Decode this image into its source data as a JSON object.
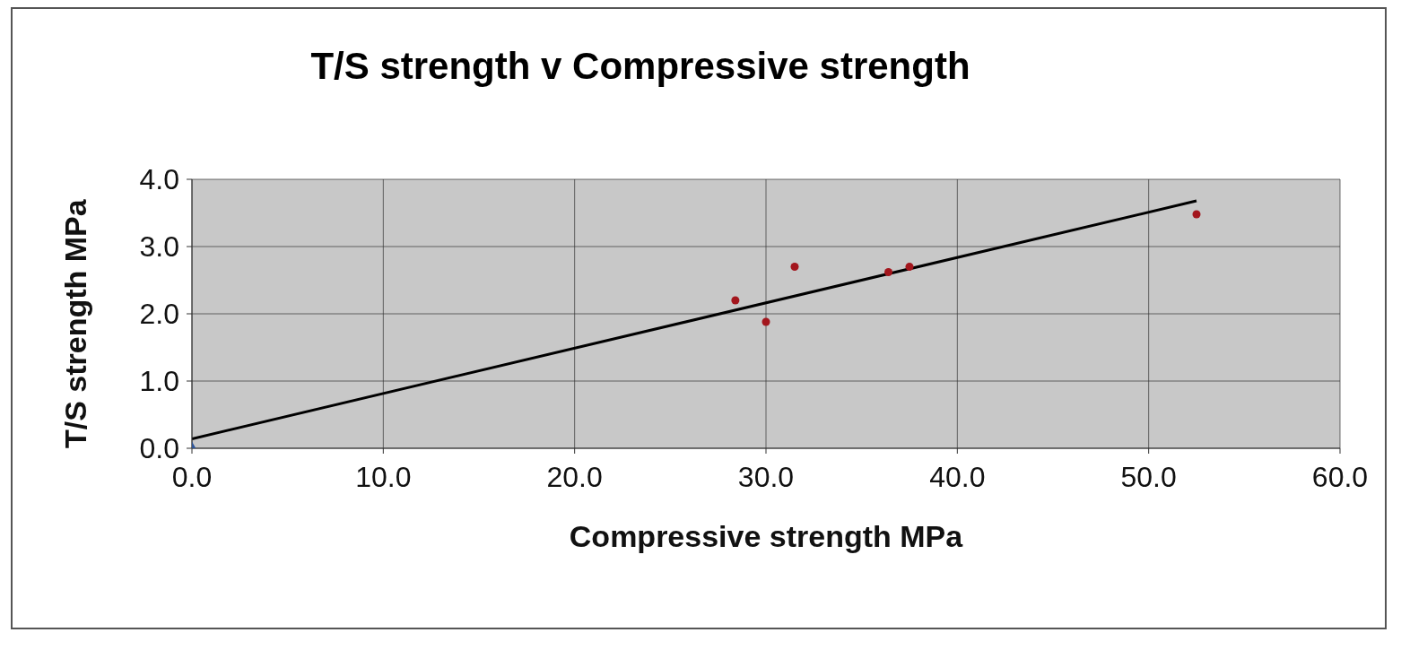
{
  "chart_data": {
    "type": "scatter",
    "title": "T/S strength v Compressive strength",
    "xlabel": "Compressive strength MPa",
    "ylabel": "T/S strength MPa",
    "series": [
      {
        "color": "#a3161d",
        "marker": "circle",
        "x": [
          28.4,
          30.0,
          31.5,
          36.4,
          37.5,
          52.5
        ],
        "values": [
          2.2,
          1.88,
          2.7,
          2.62,
          2.7,
          3.48
        ]
      },
      {
        "color": "#2f5597",
        "marker": "diamond",
        "x": [
          0
        ],
        "values": [
          0
        ]
      },
      {
        "type": "line",
        "color": "#000000",
        "marker": "none",
        "x": [
          0,
          52.5
        ],
        "values": [
          0.14,
          3.68
        ]
      }
    ],
    "xlim": [
      0,
      60
    ],
    "xticks": [
      {
        "value": 0,
        "label": "0.0"
      },
      {
        "value": 10,
        "label": "10.0"
      },
      {
        "value": 20,
        "label": "20.0"
      },
      {
        "value": 30,
        "label": "30.0"
      },
      {
        "value": 40,
        "label": "40.0"
      },
      {
        "value": 50,
        "label": "50.0"
      },
      {
        "value": 60,
        "label": "60.0"
      }
    ],
    "ylim": [
      0,
      4
    ],
    "yticks": [
      {
        "value": 0,
        "label": "0.0"
      },
      {
        "value": 1,
        "label": "1.0"
      },
      {
        "value": 2,
        "label": "2.0"
      },
      {
        "value": 3,
        "label": "3.0"
      },
      {
        "value": 4,
        "label": "4.0"
      }
    ],
    "grid": true
  }
}
